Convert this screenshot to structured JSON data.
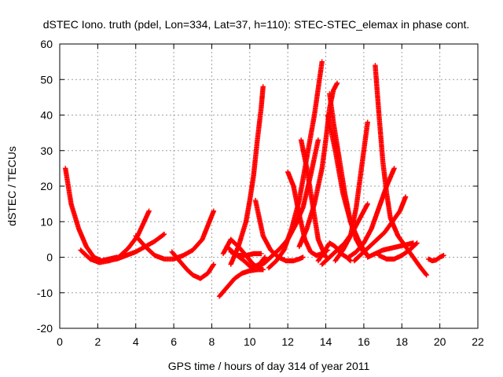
{
  "chart_data": {
    "type": "scatter",
    "title": "dSTEC Iono. truth (pdel, Lon=334, Lat=37, h=110): STEC-STEC_elemax in phase cont.",
    "xlabel": "GPS time / hours of day 314 of year 2011",
    "ylabel": "dSTEC  / TECUs",
    "xlim": [
      0,
      22
    ],
    "ylim": [
      -20,
      60
    ],
    "xticks": [
      "0",
      "2",
      "4",
      "6",
      "8",
      "10",
      "12",
      "14",
      "16",
      "18",
      "20",
      "22"
    ],
    "yticks": [
      "-20",
      "-10",
      "0",
      "10",
      "20",
      "30",
      "40",
      "50",
      "60"
    ],
    "grid": true,
    "marker": "+",
    "color": "#ff0000",
    "series": [
      {
        "x": [
          0.3,
          0.6,
          1.0,
          1.4,
          1.8,
          2.2,
          2.6,
          3.0
        ],
        "y": [
          25,
          15,
          8,
          3,
          0,
          -1,
          -0.5,
          0
        ]
      },
      {
        "x": [
          1.1,
          1.6,
          2.1,
          2.6,
          3.1,
          3.6,
          4.1,
          4.7
        ],
        "y": [
          2,
          -0.5,
          -1.5,
          -1,
          0,
          2.5,
          6,
          13
        ]
      },
      {
        "x": [
          2.5,
          3.0,
          3.5,
          4.0,
          4.5,
          5.0,
          5.5
        ],
        "y": [
          -1,
          -0.5,
          0.5,
          1.5,
          3,
          4.5,
          6.5
        ]
      },
      {
        "x": [
          4.0,
          4.5,
          5.0,
          5.5,
          6.0,
          6.5,
          7.0,
          7.5,
          8.1
        ],
        "y": [
          6,
          3,
          0.5,
          -0.5,
          -0.5,
          0.5,
          2,
          5,
          13
        ]
      },
      {
        "x": [
          5.9,
          6.3,
          6.7,
          7.0,
          7.4,
          7.8,
          8.1
        ],
        "y": [
          1.5,
          -1,
          -3.5,
          -5,
          -6,
          -4.5,
          -2
        ]
      },
      {
        "x": [
          8.4,
          8.8,
          9.2,
          9.6,
          10.0,
          10.4,
          10.7
        ],
        "y": [
          -11,
          -8.5,
          -6,
          -4.5,
          -3.8,
          -3.5,
          -3.5
        ]
      },
      {
        "x": [
          8.6,
          9.0,
          9.4,
          9.8,
          10.1,
          10.4,
          10.7
        ],
        "y": [
          1,
          5,
          3,
          0.5,
          -1.5,
          -3,
          -3.5
        ]
      },
      {
        "x": [
          8.8,
          9.2,
          9.7,
          10.1,
          10.5,
          10.8
        ],
        "y": [
          3,
          1,
          -1,
          -3,
          -2,
          0
        ]
      },
      {
        "x": [
          9.0,
          9.4,
          9.8,
          10.2,
          10.6
        ],
        "y": [
          1.5,
          0.5,
          0.5,
          1,
          1
        ]
      },
      {
        "x": [
          9.0,
          9.4,
          9.8,
          10.0,
          10.2,
          10.4,
          10.6,
          10.7
        ],
        "y": [
          -2,
          3,
          10,
          16,
          23,
          33,
          42,
          48
        ]
      },
      {
        "x": [
          10.3,
          10.7,
          11.1,
          11.5,
          11.9,
          12.3,
          12.6,
          12.8
        ],
        "y": [
          16,
          6,
          2,
          0,
          -1,
          -1,
          -0.5,
          0
        ]
      },
      {
        "x": [
          10.4,
          10.8,
          11.2,
          11.6,
          12.0,
          12.4,
          12.8,
          13.2,
          13.6
        ],
        "y": [
          -3,
          -1.5,
          0.5,
          2.5,
          5,
          9,
          14,
          23,
          33
        ]
      },
      {
        "x": [
          11.0,
          11.4,
          11.8,
          12.2,
          12.6,
          13.0,
          13.4,
          13.8
        ],
        "y": [
          -3,
          -1,
          2,
          8,
          16,
          28,
          40,
          55
        ]
      },
      {
        "x": [
          12.0,
          12.3,
          12.6,
          12.9,
          13.2,
          13.5,
          13.8,
          14.1
        ],
        "y": [
          24,
          20,
          12,
          5,
          1.5,
          0.5,
          1,
          2
        ]
      },
      {
        "x": [
          12.7,
          13.0,
          13.3,
          13.6,
          14.0
        ],
        "y": [
          33,
          25,
          15,
          5,
          0
        ]
      },
      {
        "x": [
          12.6,
          13.0,
          13.4,
          13.8,
          14.0,
          14.2,
          14.4,
          14.6
        ],
        "y": [
          3,
          8,
          15,
          25,
          33,
          42,
          47,
          49
        ]
      },
      {
        "x": [
          13.6,
          13.9,
          14.2,
          14.5,
          14.8,
          15.1,
          15.3
        ],
        "y": [
          -1,
          1.5,
          4,
          3,
          1,
          0,
          -1
        ]
      },
      {
        "x": [
          13.8,
          14.2,
          14.6,
          15.0,
          15.4,
          15.8,
          16.2
        ],
        "y": [
          -2,
          0,
          2,
          4,
          7,
          11,
          15
        ]
      },
      {
        "x": [
          14.2,
          14.4,
          14.7,
          15.0,
          15.3,
          15.6,
          15.9,
          16.2
        ],
        "y": [
          46,
          38,
          28,
          18,
          10,
          5,
          2,
          0.5
        ]
      },
      {
        "x": [
          14.1,
          14.5,
          14.9,
          15.3,
          15.7,
          16.0,
          16.2
        ],
        "y": [
          40,
          30,
          18,
          10,
          5,
          2,
          0.5
        ]
      },
      {
        "x": [
          14.5,
          14.9,
          15.3,
          15.6,
          15.8,
          16.0,
          16.2
        ],
        "y": [
          -1,
          2,
          6,
          14,
          22,
          30,
          38
        ]
      },
      {
        "x": [
          15.2,
          15.6,
          16.0,
          16.4,
          16.8,
          17.2,
          17.6
        ],
        "y": [
          0,
          1.5,
          4,
          8,
          14,
          20,
          25
        ]
      },
      {
        "x": [
          15.5,
          15.9,
          16.3,
          16.7,
          17.1,
          17.5,
          17.9,
          18.2
        ],
        "y": [
          -1,
          1,
          3,
          5,
          7,
          10,
          13,
          17
        ]
      },
      {
        "x": [
          16.2,
          16.6,
          17.0,
          17.4,
          17.8,
          18.2,
          18.6
        ],
        "y": [
          0,
          1,
          2,
          2.5,
          3,
          3.5,
          4
        ]
      },
      {
        "x": [
          16.6,
          16.8,
          17.0,
          17.2,
          17.4,
          17.8,
          18.2,
          18.6,
          19.0,
          19.3
        ],
        "y": [
          54,
          40,
          27,
          18,
          11,
          6,
          3,
          0,
          -3,
          -5
        ]
      },
      {
        "x": [
          16.8,
          17.2,
          17.6,
          18.0,
          18.4,
          18.8
        ],
        "y": [
          0.5,
          -0.5,
          -0.5,
          0.5,
          2,
          4
        ]
      },
      {
        "x": [
          19.4,
          19.6,
          19.8,
          20.0,
          20.2
        ],
        "y": [
          -0.5,
          -1,
          -0.8,
          0,
          0.5
        ]
      }
    ]
  }
}
